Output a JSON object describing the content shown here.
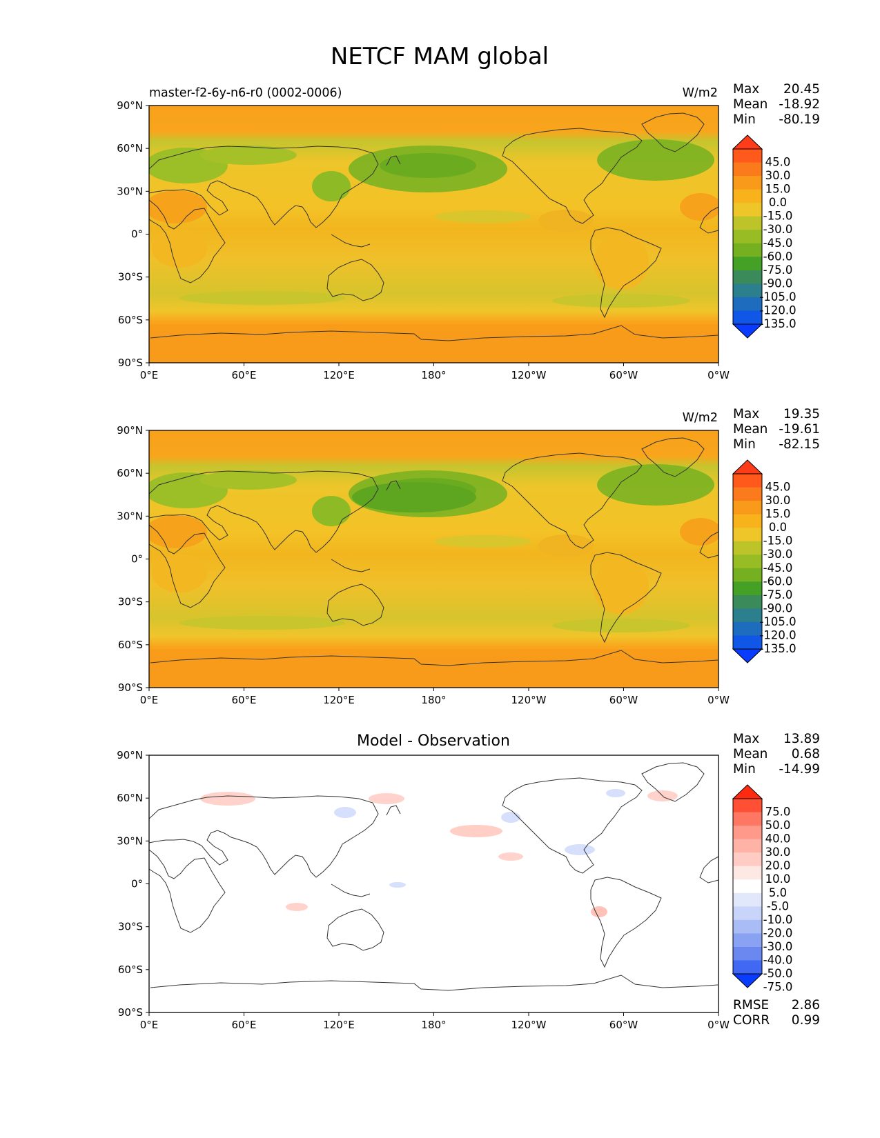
{
  "figure": {
    "title": "NETCF MAM global",
    "lat_ticks": [
      "90°N",
      "60°N",
      "30°N",
      "0°",
      "30°S",
      "60°S",
      "90°S"
    ],
    "lon_ticks": [
      "0°E",
      "60°E",
      "120°E",
      "180°",
      "120°W",
      "60°W",
      "0°W"
    ]
  },
  "panels": [
    {
      "id": "test",
      "left_title": "master-f2-6y-n6-r0 (0002-0006)",
      "center_title": "",
      "units": "W/m2",
      "stats": {
        "max_label": "Max",
        "max": "20.45",
        "mean_label": "Mean",
        "mean": "-18.92",
        "min_label": "Min",
        "min": "-80.19"
      },
      "colorbar": {
        "labels": [
          "45.0",
          "30.0",
          "15.0",
          "0.0",
          "-15.0",
          "-30.0",
          "-45.0",
          "-60.0",
          "-75.0",
          "-90.0",
          "-105.0",
          "-120.0",
          "-135.0"
        ],
        "colors": [
          "#ff3c1a",
          "#ff5a1c",
          "#fb7a1b",
          "#f99a1a",
          "#f7b21c",
          "#efc62a",
          "#bcc42a",
          "#98bd24",
          "#74b01f",
          "#45a126",
          "#3b8a5a",
          "#2c7f8c",
          "#1e6cbe",
          "#1057e8",
          "#0a3cff"
        ]
      }
    },
    {
      "id": "reference",
      "left_title": "",
      "center_title": "",
      "units": "W/m2",
      "stats": {
        "max_label": "Max",
        "max": "19.35",
        "mean_label": "Mean",
        "mean": "-19.61",
        "min_label": "Min",
        "min": "-82.15"
      },
      "colorbar": {
        "labels": [
          "45.0",
          "30.0",
          "15.0",
          "0.0",
          "-15.0",
          "-30.0",
          "-45.0",
          "-60.0",
          "-75.0",
          "-90.0",
          "-105.0",
          "-120.0",
          "-135.0"
        ],
        "colors": [
          "#ff3c1a",
          "#ff5a1c",
          "#fb7a1b",
          "#f99a1a",
          "#f7b21c",
          "#efc62a",
          "#bcc42a",
          "#98bd24",
          "#74b01f",
          "#45a126",
          "#3b8a5a",
          "#2c7f8c",
          "#1e6cbe",
          "#1057e8",
          "#0a3cff"
        ]
      }
    },
    {
      "id": "difference",
      "left_title": "",
      "center_title": "Model - Observation",
      "units": "",
      "stats": {
        "max_label": "Max",
        "max": "13.89",
        "mean_label": "Mean",
        "mean": "0.68",
        "min_label": "Min",
        "min": "-14.99"
      },
      "colorbar": {
        "labels": [
          "75.0",
          "50.0",
          "40.0",
          "30.0",
          "20.0",
          "10.0",
          "5.0",
          "-5.0",
          "-10.0",
          "-20.0",
          "-30.0",
          "-40.0",
          "-50.0",
          "-75.0"
        ],
        "colors": [
          "#ff2a10",
          "#ff5036",
          "#fe7763",
          "#ff9a8a",
          "#ffb3a7",
          "#ffccc4",
          "#fee8e4",
          "#ffffff",
          "#e2e8fc",
          "#c8d4fa",
          "#a9bcf6",
          "#8aa2f2",
          "#6a88f0",
          "#4168f2",
          "#0a3cff"
        ]
      },
      "metrics": {
        "rmse_label": "RMSE",
        "rmse": "2.86",
        "corr_label": "CORR",
        "corr": "0.99"
      }
    }
  ]
}
